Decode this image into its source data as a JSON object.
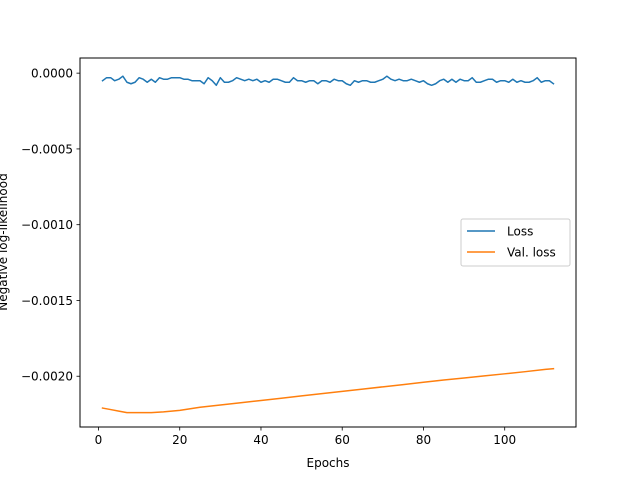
{
  "chart_data": {
    "type": "line",
    "title": "",
    "xlabel": "Epochs",
    "ylabel": "Negative log-likelihood",
    "xlim": [
      -4.55,
      117.55
    ],
    "ylim": [
      -0.002335,
      0.0001
    ],
    "x_ticks": [
      0,
      20,
      40,
      60,
      80,
      100
    ],
    "x_tick_labels": [
      "0",
      "20",
      "40",
      "60",
      "80",
      "100"
    ],
    "y_ticks": [
      0.0,
      -0.0005,
      -0.001,
      -0.0015,
      -0.002
    ],
    "y_tick_labels": [
      "0.0000",
      "−0.0005",
      "−0.0010",
      "−0.0015",
      "−0.0020"
    ],
    "grid": false,
    "legend_position": "center right",
    "colors": {
      "Loss": "#1f77b4",
      "Val. loss": "#ff7f0e"
    },
    "series": [
      {
        "name": "Loss",
        "x": [
          1,
          2,
          3,
          4,
          5,
          6,
          7,
          8,
          9,
          10,
          11,
          12,
          13,
          14,
          15,
          16,
          17,
          18,
          19,
          20,
          21,
          22,
          23,
          24,
          25,
          26,
          27,
          28,
          29,
          30,
          31,
          32,
          33,
          34,
          35,
          36,
          37,
          38,
          39,
          40,
          41,
          42,
          43,
          44,
          45,
          46,
          47,
          48,
          49,
          50,
          51,
          52,
          53,
          54,
          55,
          56,
          57,
          58,
          59,
          60,
          61,
          62,
          63,
          64,
          65,
          66,
          67,
          68,
          69,
          70,
          71,
          72,
          73,
          74,
          75,
          76,
          77,
          78,
          79,
          80,
          81,
          82,
          83,
          84,
          85,
          86,
          87,
          88,
          89,
          90,
          91,
          92,
          93,
          94,
          95,
          96,
          97,
          98,
          99,
          100,
          101,
          102,
          103,
          104,
          105,
          106,
          107,
          108,
          109,
          110,
          111,
          112
        ],
        "y": [
          -5e-05,
          -3e-05,
          -3e-05,
          -5e-05,
          -4e-05,
          -2e-05,
          -6e-05,
          -7e-05,
          -6e-05,
          -3e-05,
          -4e-05,
          -6e-05,
          -4e-05,
          -6e-05,
          -3e-05,
          -4e-05,
          -4e-05,
          -3e-05,
          -3e-05,
          -3e-05,
          -4e-05,
          -4e-05,
          -5e-05,
          -5e-05,
          -5e-05,
          -7e-05,
          -3e-05,
          -5e-05,
          -8e-05,
          -3e-05,
          -6e-05,
          -6e-05,
          -5e-05,
          -3e-05,
          -4e-05,
          -5e-05,
          -4e-05,
          -5e-05,
          -4e-05,
          -6e-05,
          -5e-05,
          -6e-05,
          -4e-05,
          -4e-05,
          -5e-05,
          -6e-05,
          -6e-05,
          -3e-05,
          -5e-05,
          -5e-05,
          -6e-05,
          -5e-05,
          -5e-05,
          -7e-05,
          -5e-05,
          -5e-05,
          -6e-05,
          -4e-05,
          -5e-05,
          -5e-05,
          -7e-05,
          -8e-05,
          -5e-05,
          -6e-05,
          -5e-05,
          -5e-05,
          -6e-05,
          -6e-05,
          -5e-05,
          -4e-05,
          -2e-05,
          -4e-05,
          -5e-05,
          -4e-05,
          -5e-05,
          -5e-05,
          -4e-05,
          -5e-05,
          -6e-05,
          -5e-05,
          -7e-05,
          -8e-05,
          -7e-05,
          -5e-05,
          -4e-05,
          -6e-05,
          -4e-05,
          -6e-05,
          -4e-05,
          -5e-05,
          -5e-05,
          -3e-05,
          -6e-05,
          -6e-05,
          -5e-05,
          -4e-05,
          -4e-05,
          -6e-05,
          -5e-05,
          -5e-05,
          -6e-05,
          -4e-05,
          -6e-05,
          -5e-05,
          -6e-05,
          -6e-05,
          -5e-05,
          -3e-05,
          -6e-05,
          -5e-05,
          -5e-05,
          -7e-05
        ]
      },
      {
        "name": "Val. loss",
        "x": [
          1,
          3,
          5,
          7,
          10,
          13,
          16,
          20,
          25,
          30,
          35,
          40,
          45,
          50,
          55,
          60,
          65,
          70,
          75,
          80,
          85,
          90,
          95,
          100,
          105,
          110,
          112
        ],
        "y": [
          -0.00221,
          -0.00222,
          -0.00223,
          -0.00224,
          -0.00224,
          -0.00224,
          -0.002235,
          -0.002225,
          -0.002205,
          -0.00219,
          -0.002175,
          -0.00216,
          -0.002145,
          -0.00213,
          -0.002115,
          -0.0021,
          -0.002085,
          -0.00207,
          -0.002055,
          -0.00204,
          -0.002025,
          -0.002012,
          -0.001998,
          -0.001984,
          -0.00197,
          -0.001955,
          -0.00195
        ]
      }
    ]
  }
}
